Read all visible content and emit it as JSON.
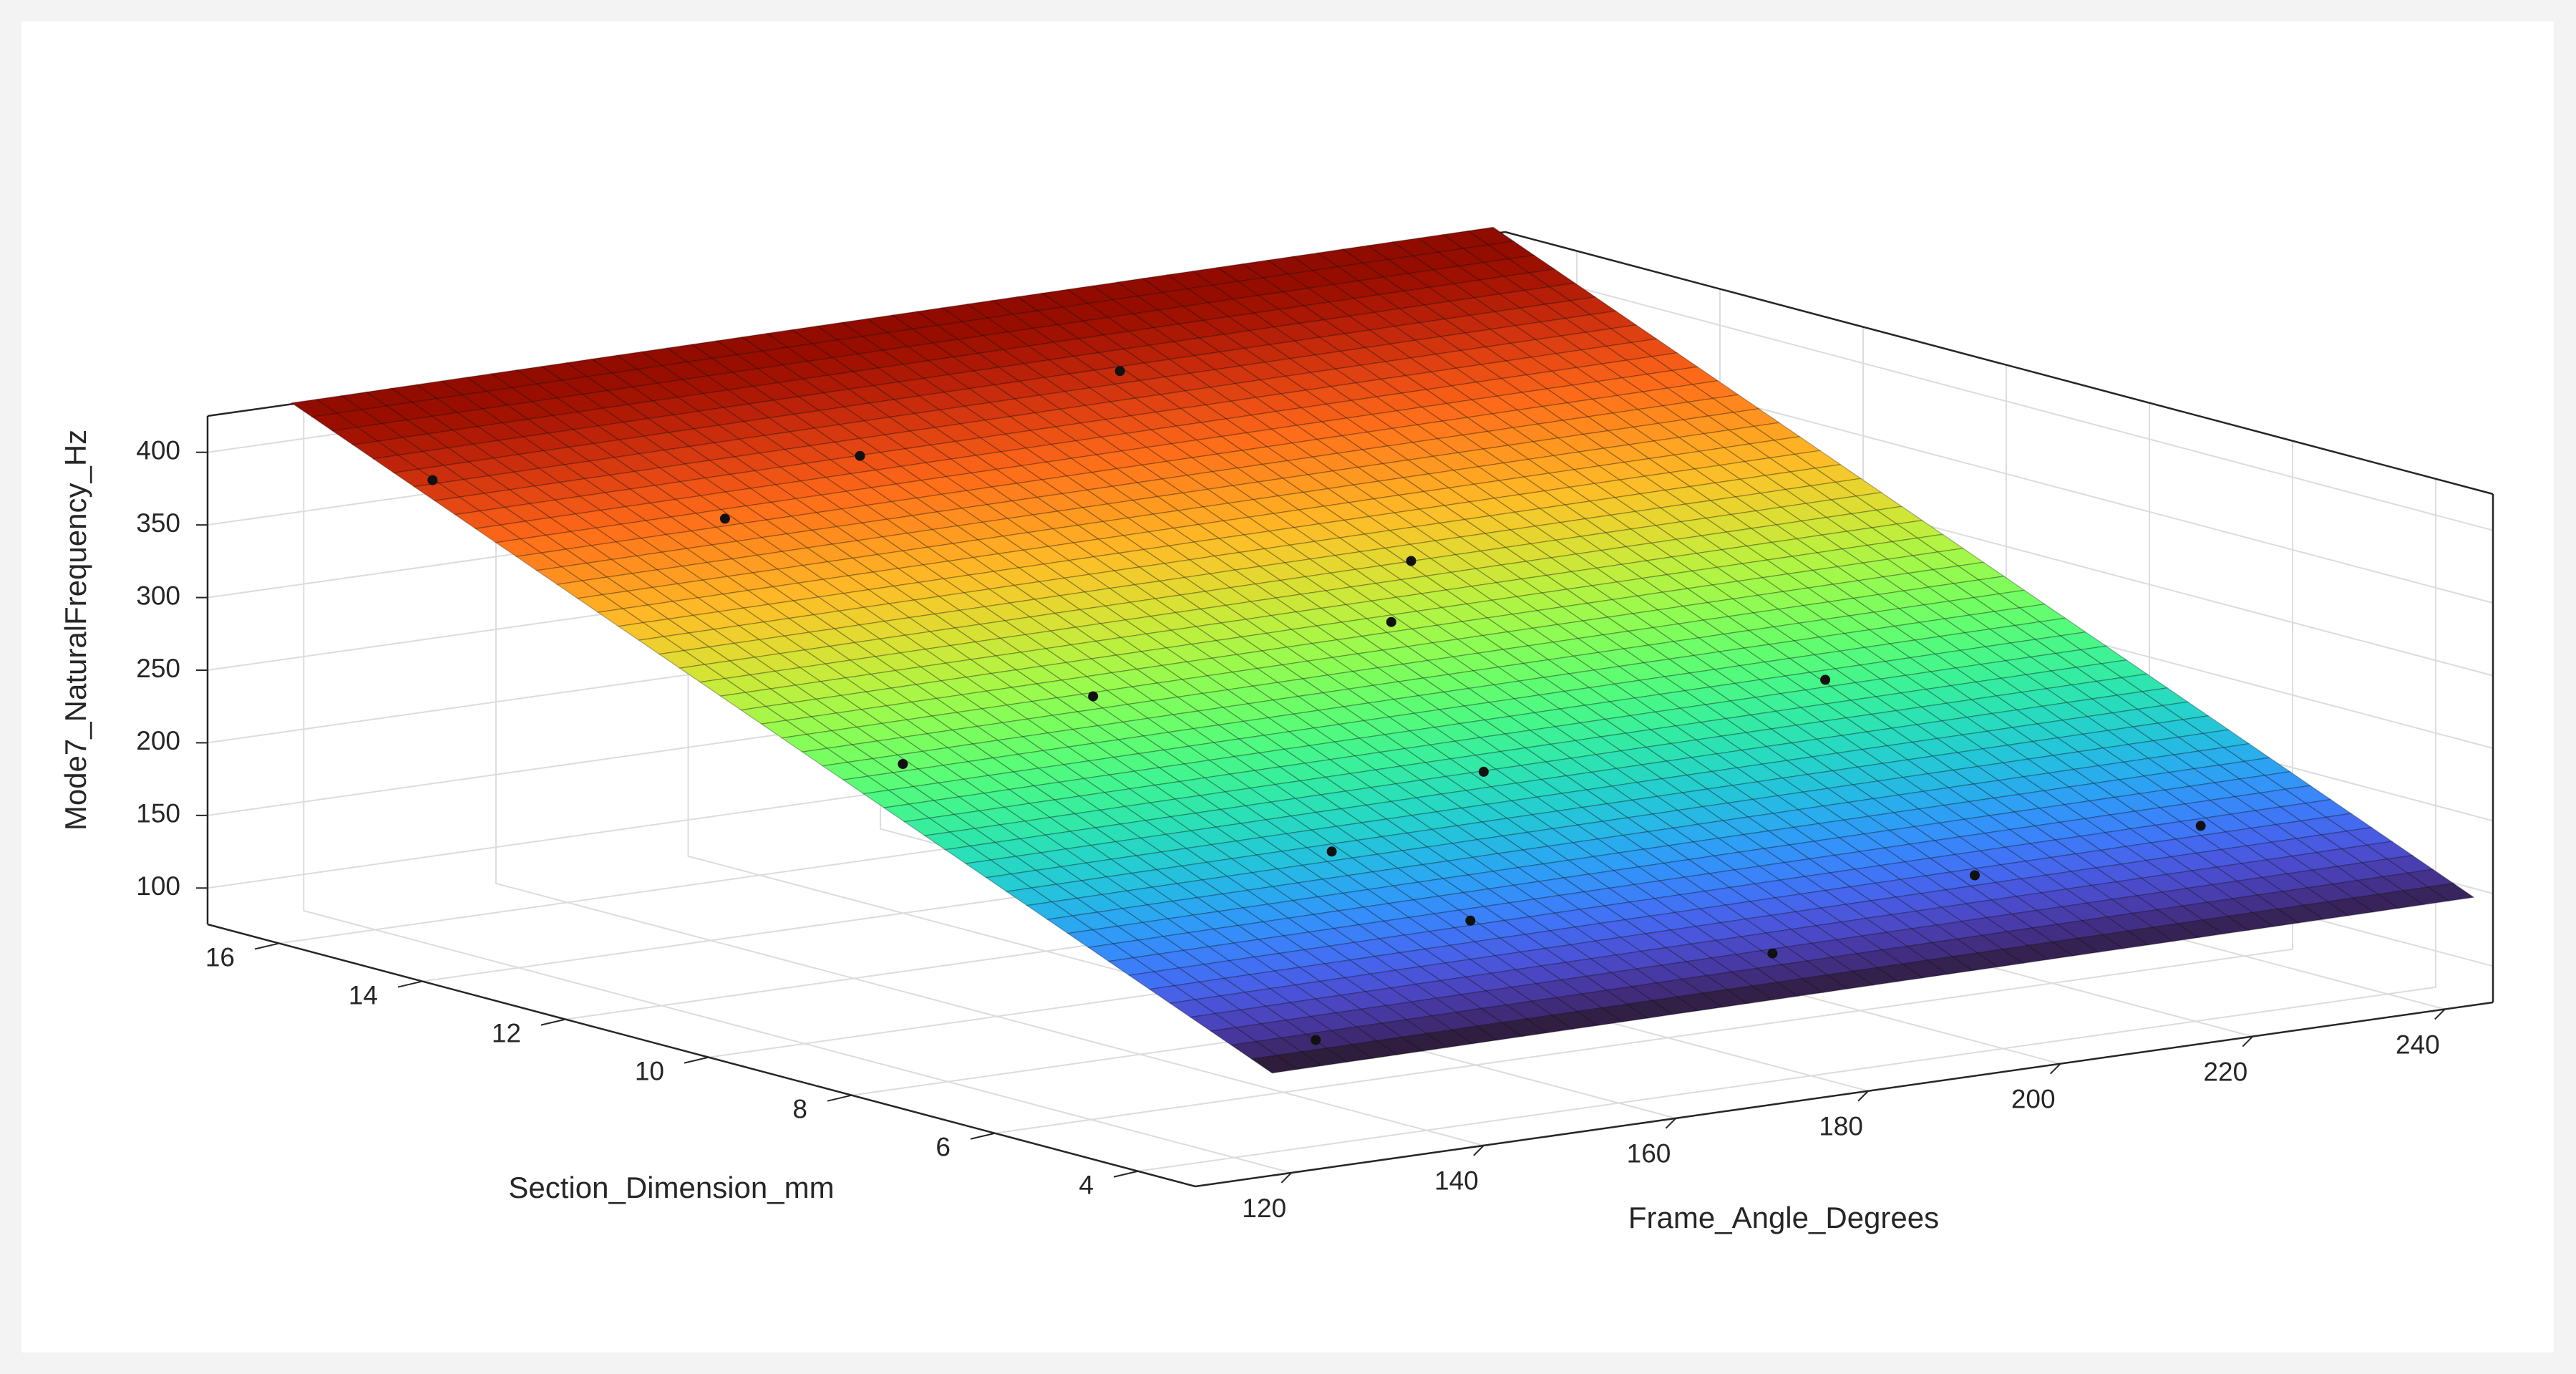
{
  "chart_data": {
    "type": "surface",
    "xlabel": "Frame_Angle_Degrees",
    "ylabel": "Section_Dimension_mm",
    "zlabel": "Mode7_NaturalFrequency_Hz",
    "xlim": [
      110,
      245
    ],
    "ylim": [
      3.2,
      17
    ],
    "zlim": [
      75,
      425
    ],
    "x_ticks": [
      120,
      140,
      160,
      180,
      200,
      220,
      240
    ],
    "y_ticks": [
      4,
      6,
      8,
      10,
      12,
      14,
      16
    ],
    "z_ticks": [
      100,
      150,
      200,
      250,
      300,
      350,
      400
    ],
    "grid": true,
    "colormap": "turbo",
    "surface_fit": {
      "equation": "z = c0 + cx*x + cy*y",
      "c0": 76.15,
      "cx": 0.0295,
      "cy": 20.6,
      "x_range": [
        118,
        243
      ],
      "y_range": [
        3.2,
        16.9
      ]
    },
    "points": [
      {
        "x": 127,
        "y": 3.8,
        "z": 152
      },
      {
        "x": 155,
        "y": 5.4,
        "z": 187
      },
      {
        "x": 176,
        "y": 4.0,
        "z": 163
      },
      {
        "x": 203,
        "y": 4.8,
        "z": 181
      },
      {
        "x": 228,
        "y": 5.0,
        "z": 189
      },
      {
        "x": 120,
        "y": 15.2,
        "z": 395
      },
      {
        "x": 140,
        "y": 13.8,
        "z": 368
      },
      {
        "x": 125,
        "y": 9.3,
        "z": 272
      },
      {
        "x": 150,
        "y": 10.0,
        "z": 286
      },
      {
        "x": 151,
        "y": 6.8,
        "z": 220
      },
      {
        "x": 175,
        "y": 7.9,
        "z": 238
      },
      {
        "x": 184,
        "y": 10.4,
        "z": 300
      },
      {
        "x": 195,
        "y": 11.6,
        "z": 316
      },
      {
        "x": 215,
        "y": 8.5,
        "z": 256
      },
      {
        "x": 160,
        "y": 14.6,
        "z": 382
      },
      {
        "x": 193,
        "y": 15.4,
        "z": 399
      }
    ]
  }
}
